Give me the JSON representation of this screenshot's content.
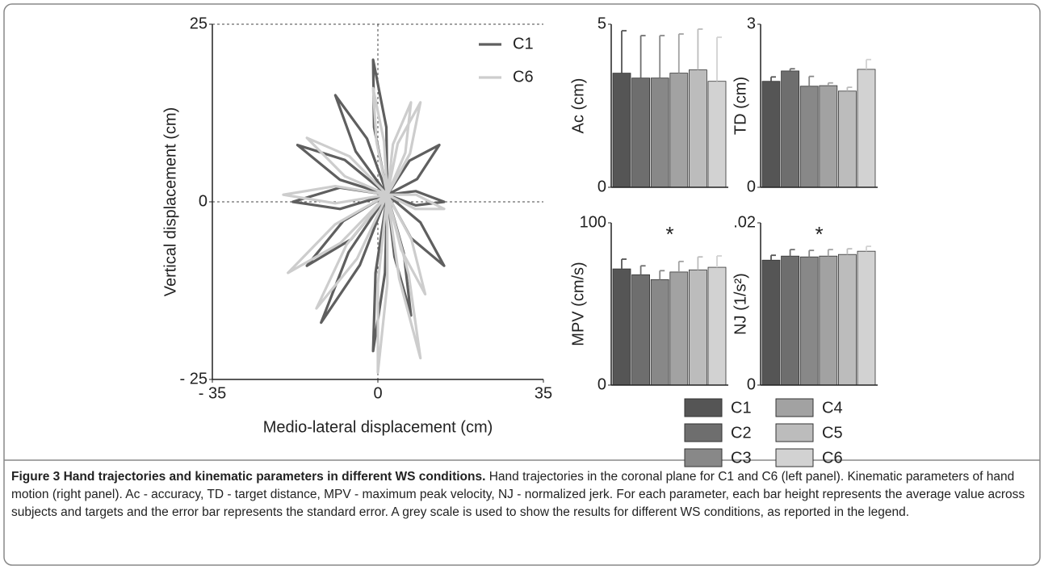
{
  "chart_data": [
    {
      "type": "line",
      "xlabel": "Medio-lateral displacement (cm)",
      "ylabel": "Vertical displacement (cm)",
      "xlim": [
        -35,
        35
      ],
      "ylim": [
        -25,
        25
      ],
      "xticks": [
        {
          "value": -35,
          "label": "- 35"
        },
        0,
        35
      ],
      "yticks": [
        {
          "value": -25,
          "label": "- 25"
        },
        0,
        25
      ],
      "legend": "upper right",
      "series": [
        {
          "name": "C1",
          "color": "#5f5f5f",
          "x": [
            2,
            1.8,
            -1,
            -0.8,
            2,
            null,
            2,
            -2.3,
            -9,
            -4.7,
            2,
            null,
            2,
            -7,
            -17,
            -8,
            2,
            null,
            2,
            -8,
            -18,
            -8,
            2,
            null,
            2,
            -7.3,
            -15,
            -5.7,
            2,
            null,
            2,
            -6.2,
            -12,
            -3.8,
            2,
            null,
            2,
            -0.5,
            -1,
            1.5,
            2,
            null,
            2,
            9,
            14,
            7,
            2,
            null,
            2,
            6.7,
            13,
            8.3,
            2,
            null,
            2,
            8,
            14,
            8,
            2,
            null,
            2,
            5.5,
            7,
            3.5,
            2
          ],
          "values": [
            1,
            10.5,
            20,
            10.5,
            1,
            null,
            1,
            8.9,
            15,
            7.1,
            1,
            null,
            1,
            5.9,
            8,
            3.1,
            1,
            null,
            1,
            2,
            0,
            -1,
            1,
            null,
            1,
            -2.7,
            -9,
            -5.3,
            1,
            null,
            1,
            -7.1,
            -17,
            -8.9,
            1,
            null,
            1,
            -10,
            -21,
            -10,
            1,
            null,
            1,
            -2.9,
            -9,
            -5.1,
            1,
            null,
            1,
            5.8,
            8,
            3.2,
            1,
            null,
            1,
            1.5,
            0,
            -0.5,
            1,
            null,
            1,
            -7.3,
            -16,
            -7.7,
            1
          ]
        },
        {
          "name": "C6",
          "color": "#cdcdcd",
          "x": [
            2,
            1.3,
            -1,
            -0.3,
            2,
            null,
            2,
            4.2,
            9,
            6.8,
            2,
            null,
            2,
            -6,
            -15,
            -7,
            2,
            null,
            2,
            -9,
            -20,
            -9,
            2,
            null,
            2,
            -9.1,
            -19,
            -7.9,
            2,
            null,
            2,
            -6.6,
            -13,
            -4.4,
            2,
            null,
            2,
            0,
            0,
            2,
            2,
            null,
            2,
            6.5,
            9,
            4.5,
            2,
            null,
            2,
            7.1,
            10,
            4.9,
            2,
            null,
            2,
            8.1,
            14,
            7.9,
            2,
            null,
            2,
            3.2,
            7,
            5.8,
            2
          ],
          "values": [
            1,
            8.5,
            16,
            8.5,
            1,
            null,
            1,
            8.2,
            14,
            6.8,
            1,
            null,
            1,
            6.4,
            9,
            3.6,
            1,
            null,
            1,
            2.2,
            1,
            -0.2,
            1,
            null,
            1,
            -3.2,
            -10,
            -5.8,
            1,
            null,
            1,
            -6,
            -15,
            -8,
            1,
            null,
            1,
            -11.5,
            -24,
            -11.5,
            1,
            null,
            1,
            -10.2,
            -22,
            -10.8,
            1,
            null,
            1,
            -5.3,
            -13,
            -6.7,
            1,
            null,
            1,
            1,
            -1,
            -1,
            1,
            null,
            1,
            8.1,
            14,
            6.9,
            1
          ]
        }
      ]
    },
    {
      "type": "bar",
      "ylabel": "Ac (cm)",
      "ylim": [
        0,
        5
      ],
      "yticks": [
        0,
        5
      ],
      "values": [
        3.5,
        3.35,
        3.35,
        3.5,
        3.6,
        3.25
      ],
      "errors": [
        1.3,
        1.3,
        1.3,
        1.2,
        1.25,
        1.35
      ]
    },
    {
      "type": "bar",
      "ylabel": "TD (cm)",
      "ylim": [
        0,
        3
      ],
      "yticks": [
        0,
        3
      ],
      "values": [
        1.95,
        2.14,
        1.86,
        1.87,
        1.77,
        2.17
      ],
      "errors": [
        0.08,
        0.04,
        0.18,
        0.05,
        0.07,
        0.18
      ]
    },
    {
      "type": "bar",
      "ylabel": "MPV (cm/s)",
      "ylim": [
        0,
        100
      ],
      "yticks": [
        0,
        100
      ],
      "annotation": "*",
      "values": [
        71.6,
        68,
        65,
        69.7,
        71,
        72.6
      ],
      "errors": [
        6,
        5.5,
        5.5,
        6.5,
        8,
        7
      ]
    },
    {
      "type": "bar",
      "ylabel": "NJ (1/s²)",
      "ylim": [
        0,
        0.02
      ],
      "yticks": [
        0,
        {
          "value": 0.02,
          "label": ".02"
        }
      ],
      "annotation": "*",
      "values": [
        0.0154,
        0.0159,
        0.0158,
        0.0159,
        0.0161,
        0.0165
      ],
      "errors": [
        0.0006,
        0.0008,
        0.0008,
        0.0008,
        0.0007,
        0.0006
      ]
    }
  ],
  "legend": {
    "names": [
      "C1",
      "C2",
      "C3",
      "C4",
      "C5",
      "C6"
    ],
    "colors": [
      "#555555",
      "#6e6e6e",
      "#888888",
      "#a2a2a2",
      "#bcbcbc",
      "#d2d2d2"
    ]
  },
  "caption": {
    "title": "Figure 3 Hand trajectories and kinematic parameters in different WS conditions.",
    "text": "Hand trajectories in the coronal plane for C1 and C6 (left panel). Kinematic parameters of hand motion (right panel). Ac - accuracy, TD - target distance, MPV - maximum peak velocity, NJ - normalized jerk. For each parameter, each bar height represents the average value across subjects and targets and the error bar represents the standard error. A grey scale is used to show the results for different WS conditions, as reported in the legend."
  }
}
